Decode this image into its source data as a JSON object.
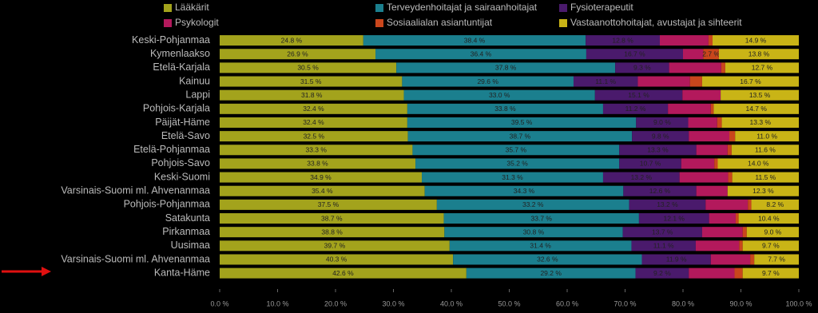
{
  "chart_data": {
    "type": "stacked-bar-horizontal",
    "categories": [
      "Keski-Pohjanmaa",
      "Kymenlaakso",
      "Etelä-Karjala",
      "Kainuu",
      "Lappi",
      "Pohjois-Karjala",
      "Päijät-Häme",
      "Etelä-Savo",
      "Etelä-Pohjanmaa",
      "Pohjois-Savo",
      "Keski-Suomi",
      "Varsinais-Suomi ml. Ahvenanmaa",
      "Pohjois-Pohjanmaa",
      "Satakunta",
      "Pirkanmaa",
      "Uusimaa",
      "Varsinais-Suomi ml. Ahvenanmaa",
      "Kanta-Häme"
    ],
    "series": [
      {
        "name": "Lääkärit",
        "color": "#a3a31c",
        "values": [
          24.8,
          26.9,
          30.5,
          31.5,
          31.8,
          32.4,
          32.4,
          32.5,
          33.3,
          33.8,
          34.9,
          35.4,
          37.5,
          38.7,
          38.8,
          39.7,
          40.3,
          42.6
        ],
        "value_labels": [
          "24.8 %",
          "26.9 %",
          "30.5 %",
          "31.5 %",
          "31.8 %",
          "32.4 %",
          "32.4 %",
          "32.5 %",
          "33.3 %",
          "33.8 %",
          "34.9 %",
          "35.4 %",
          "37.5 %",
          "38.7 %",
          "38.8 %",
          "39.7 %",
          "40.3 %",
          "42.6 %"
        ]
      },
      {
        "name": "Terveydenhoitajat ja sairaanhoitajat",
        "color": "#1b7f8e",
        "values": [
          38.4,
          36.4,
          37.8,
          29.6,
          33.0,
          33.8,
          39.5,
          38.7,
          35.7,
          35.2,
          31.3,
          34.3,
          33.2,
          33.7,
          30.8,
          31.4,
          32.6,
          29.2
        ],
        "value_labels": [
          "38.4 %",
          "36.4 %",
          "37.8 %",
          "29.6 %",
          "33.0 %",
          "33.8 %",
          "39.5 %",
          "38.7 %",
          "35.7 %",
          "35.2 %",
          "31.3 %",
          "34.3 %",
          "33.2 %",
          "33.7 %",
          "30.8 %",
          "31.4 %",
          "32.6 %",
          "29.2 %"
        ]
      },
      {
        "name": "Fysioterapeutit",
        "color": "#4a1a6c",
        "values": [
          12.8,
          16.7,
          9.3,
          11.1,
          15.1,
          11.2,
          9.0,
          9.8,
          13.3,
          10.7,
          13.2,
          12.6,
          13.2,
          12.1,
          13.7,
          11.1,
          11.9,
          9.2
        ],
        "value_labels": [
          "12.8 %",
          "16.7 %",
          "9.3 %",
          "11.1 %",
          "15.1 %",
          "11.2 %",
          "9.0 %",
          "9.8 %",
          "13.3 %",
          "10.7 %",
          "13.2 %",
          "12.6 %",
          "13.2 %",
          "12.1 %",
          "13.7 %",
          "11.1 %",
          "11.9 %",
          "9.2 %"
        ]
      },
      {
        "name": "Psykologit",
        "color": "#b3195c",
        "values": [
          8.4,
          3.5,
          9.0,
          9.0,
          6.6,
          7.4,
          5.0,
          7.0,
          5.4,
          5.7,
          8.4,
          5.4,
          7.3,
          4.6,
          7.0,
          7.5,
          6.8,
          7.9
        ],
        "value_labels": [
          null,
          null,
          null,
          null,
          null,
          null,
          null,
          null,
          null,
          null,
          null,
          null,
          null,
          null,
          null,
          null,
          null,
          null
        ]
      },
      {
        "name": "Sosiaalialan asiantuntijat",
        "color": "#c9461c",
        "values": [
          0.7,
          2.7,
          0.7,
          2.1,
          0,
          0.5,
          0.8,
          1.0,
          0.7,
          0.6,
          0.7,
          0,
          0.6,
          0.5,
          0.7,
          0.6,
          0.7,
          1.4
        ],
        "value_labels": [
          null,
          "2.7 %",
          null,
          null,
          null,
          null,
          null,
          null,
          null,
          null,
          null,
          null,
          null,
          null,
          null,
          null,
          null,
          null
        ]
      },
      {
        "name": "Vastaanottohoitajat, avustajat ja sihteerit",
        "color": "#c9b416",
        "values": [
          14.9,
          13.8,
          12.7,
          16.7,
          13.5,
          14.7,
          13.3,
          11.0,
          11.6,
          14.0,
          11.5,
          12.3,
          8.2,
          10.4,
          9.0,
          9.7,
          7.7,
          9.7
        ],
        "value_labels": [
          "14.9 %",
          "13.8 %",
          "12.7 %",
          "16.7 %",
          "13.5 %",
          "14.7 %",
          "13.3 %",
          "11.0 %",
          "11.6 %",
          "14.0 %",
          "11.5 %",
          "12.3 %",
          "8.2 %",
          "10.4 %",
          "9.0 %",
          "9.7 %",
          "7.7 %",
          "9.7 %"
        ]
      }
    ],
    "xlim": [
      0,
      100
    ],
    "xticks": [
      {
        "value": 0,
        "label": "0.0 %"
      },
      {
        "value": 10,
        "label": "10.0 %"
      },
      {
        "value": 20,
        "label": "20.0 %"
      },
      {
        "value": 30,
        "label": "30.0 %"
      },
      {
        "value": 40,
        "label": "40.0 %"
      },
      {
        "value": 50,
        "label": "50.0 %"
      },
      {
        "value": 60,
        "label": "60.0 %"
      },
      {
        "value": 70,
        "label": "70.0 %"
      },
      {
        "value": 80,
        "label": "80.0 %"
      },
      {
        "value": 90,
        "label": "90.0 %"
      },
      {
        "value": 100,
        "label": "100.0 %"
      }
    ],
    "grid": false,
    "legend": "top"
  }
}
